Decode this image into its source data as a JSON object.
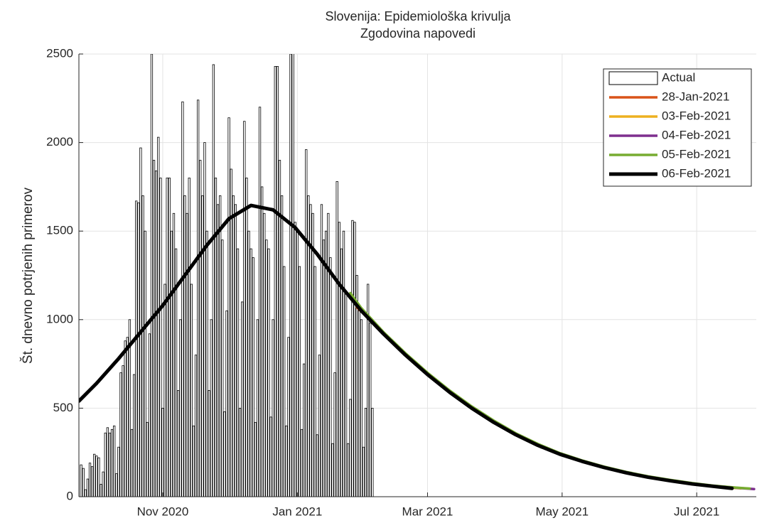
{
  "chart_data": {
    "type": "combo",
    "title": "Slovenija: Epidemiološka krivulja",
    "subtitle": "Zgodovina napovedi",
    "y_label": "Št. dnevno potrjenih primerov",
    "xlim": [
      -38,
      269
    ],
    "xticks": [
      {
        "value": 0,
        "label": "Nov 2020"
      },
      {
        "value": 61,
        "label": "Jan 2021"
      },
      {
        "value": 120,
        "label": "Mar 2021"
      },
      {
        "value": 181,
        "label": "May 2021"
      },
      {
        "value": 242,
        "label": "Jul 2021"
      }
    ],
    "ylim": [
      0,
      2500
    ],
    "yticks": [
      0,
      500,
      1000,
      1500,
      2000,
      2500
    ],
    "grid": true,
    "legend": "upper right",
    "series": [
      {
        "name": "Actual",
        "type": "bar",
        "color": "#ffffff",
        "x": [
          -37,
          -36,
          -35,
          -34,
          -33,
          -32,
          -31,
          -30,
          -29,
          -28,
          -27,
          -26,
          -25,
          -24,
          -23,
          -22,
          -21,
          -20,
          -19,
          -18,
          -17,
          -16,
          -15,
          -14,
          -13,
          -12,
          -11,
          -10,
          -9,
          -8,
          -7,
          -6,
          -5,
          -4,
          -3,
          -2,
          -1,
          0,
          1,
          2,
          3,
          4,
          5,
          6,
          7,
          8,
          9,
          10,
          11,
          12,
          13,
          14,
          15,
          16,
          17,
          18,
          19,
          20,
          21,
          22,
          23,
          24,
          25,
          26,
          27,
          28,
          29,
          30,
          31,
          32,
          33,
          34,
          35,
          36,
          37,
          38,
          39,
          40,
          41,
          42,
          43,
          44,
          45,
          46,
          47,
          48,
          49,
          50,
          51,
          52,
          53,
          54,
          55,
          56,
          57,
          58,
          59,
          60,
          61,
          62,
          63,
          64,
          65,
          66,
          67,
          68,
          69,
          70,
          71,
          72,
          73,
          74,
          75,
          76,
          77,
          78,
          79,
          80,
          81,
          82,
          83,
          84,
          85,
          86,
          87,
          88,
          89,
          90,
          91,
          92,
          93,
          94,
          95
        ],
        "values": [
          180,
          160,
          40,
          100,
          190,
          170,
          240,
          230,
          220,
          70,
          140,
          360,
          390,
          360,
          380,
          400,
          130,
          280,
          700,
          740,
          880,
          900,
          1000,
          380,
          690,
          1670,
          1660,
          1970,
          1700,
          1500,
          420,
          920,
          2500,
          1900,
          1840,
          2030,
          1800,
          500,
          1200,
          1800,
          1800,
          1500,
          1600,
          1400,
          600,
          1000,
          2230,
          1700,
          1600,
          1800,
          1200,
          400,
          800,
          2240,
          1900,
          1700,
          2000,
          1500,
          600,
          1000,
          2440,
          1800,
          1650,
          1700,
          1450,
          480,
          1050,
          2140,
          1850,
          1700,
          1650,
          1400,
          500,
          1100,
          2120,
          1800,
          1500,
          1400,
          1350,
          420,
          1000,
          2200,
          1750,
          1600,
          1450,
          1400,
          450,
          1000,
          2430,
          2430,
          1900,
          1700,
          1300,
          400,
          900,
          2500,
          2580,
          1550,
          1500,
          1300,
          380,
          750,
          1960,
          1700,
          1650,
          1600,
          1300,
          350,
          800,
          1650,
          1450,
          1500,
          1600,
          1350,
          300,
          700,
          1780,
          1550,
          1400,
          1500,
          1150,
          300,
          550,
          1560,
          1550,
          1250,
          1050,
          1000,
          280,
          500,
          1200,
          980,
          500
        ]
      },
      {
        "name": "28-Jan-2021",
        "type": "line",
        "color": "#d95319",
        "x": [
          88,
          100,
          110,
          120,
          130,
          140,
          150,
          160,
          170,
          180,
          190,
          200,
          210,
          220,
          230,
          240,
          250,
          260
        ],
        "values": [
          1070,
          925,
          805,
          695,
          595,
          505,
          425,
          355,
          295,
          243,
          202,
          167,
          137,
          112,
          92,
          74,
          60,
          49
        ]
      },
      {
        "name": "03-Feb-2021",
        "type": "line",
        "color": "#edb120",
        "x": [
          90,
          100,
          110,
          120,
          130,
          140,
          150,
          160,
          170,
          180,
          190,
          200,
          210,
          220,
          230,
          240,
          250,
          262
        ],
        "values": [
          1055,
          922,
          803,
          693,
          593,
          503,
          423,
          353,
          293,
          242,
          201,
          166,
          136,
          111,
          91,
          73,
          59,
          47
        ]
      },
      {
        "name": "04-Feb-2021",
        "type": "line",
        "color": "#7e2f8e",
        "x": [
          92,
          100,
          110,
          120,
          130,
          140,
          150,
          160,
          170,
          180,
          190,
          200,
          210,
          220,
          230,
          240,
          250,
          260,
          268
        ],
        "values": [
          1035,
          925,
          806,
          696,
          596,
          506,
          426,
          356,
          296,
          244,
          203,
          168,
          138,
          113,
          93,
          75,
          61,
          50,
          43
        ]
      },
      {
        "name": "05-Feb-2021",
        "type": "line",
        "color": "#77ac30",
        "x": [
          85,
          90,
          100,
          110,
          120,
          130,
          140,
          150,
          160,
          170,
          180,
          190,
          200,
          210,
          220,
          230,
          240,
          250,
          260,
          266
        ],
        "values": [
          1150,
          1065,
          930,
          810,
          700,
          600,
          510,
          430,
          358,
          298,
          246,
          205,
          170,
          140,
          115,
          95,
          77,
          62,
          51,
          46
        ]
      },
      {
        "name": "06-Feb-2021",
        "type": "line",
        "color": "#000000",
        "x": [
          -38,
          -30,
          -20,
          -10,
          0,
          10,
          20,
          30,
          40,
          50,
          60,
          70,
          80,
          90,
          100,
          110,
          120,
          130,
          140,
          150,
          160,
          170,
          180,
          190,
          200,
          210,
          220,
          230,
          240,
          250,
          258
        ],
        "values": [
          540,
          640,
          780,
          930,
          1080,
          1250,
          1420,
          1570,
          1645,
          1620,
          1520,
          1370,
          1200,
          1050,
          920,
          800,
          690,
          590,
          500,
          420,
          350,
          290,
          240,
          200,
          165,
          135,
          110,
          90,
          72,
          58,
          47
        ]
      }
    ]
  }
}
